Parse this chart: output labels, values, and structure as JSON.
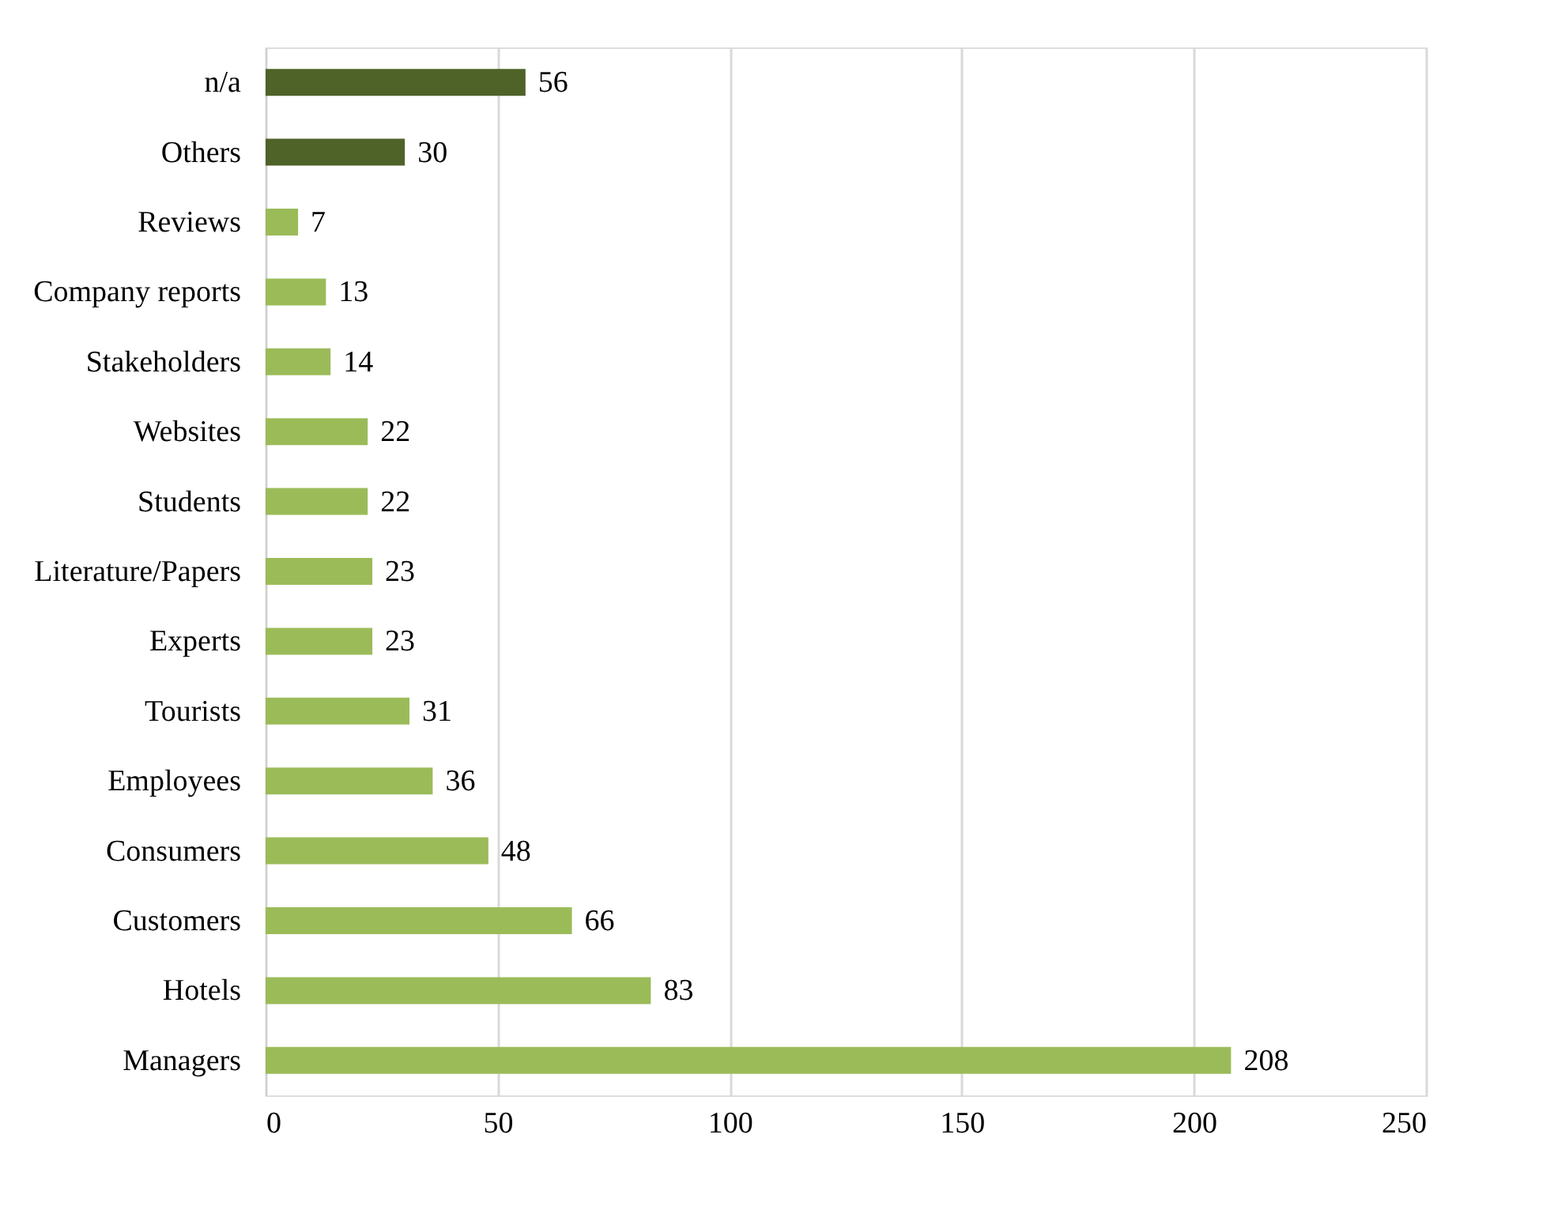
{
  "chart_data": {
    "type": "bar",
    "orientation": "horizontal",
    "categories": [
      "n/a",
      "Others",
      "Reviews",
      "Company reports",
      "Stakeholders",
      "Websites",
      "Students",
      "Literature/Papers",
      "Experts",
      "Tourists",
      "Employees",
      "Consumers",
      "Customers",
      "Hotels",
      "Managers"
    ],
    "values": [
      56,
      30,
      7,
      13,
      14,
      22,
      22,
      23,
      23,
      31,
      36,
      48,
      66,
      83,
      208
    ],
    "colors": [
      "#4f6228",
      "#4f6228",
      "#9bbb59",
      "#9bbb59",
      "#9bbb59",
      "#9bbb59",
      "#9bbb59",
      "#9bbb59",
      "#9bbb59",
      "#9bbb59",
      "#9bbb59",
      "#9bbb59",
      "#9bbb59",
      "#9bbb59",
      "#9bbb59"
    ],
    "xlim": [
      0,
      250
    ],
    "xticks": [
      0,
      50,
      100,
      150,
      200,
      250
    ],
    "grid": "x",
    "data_labels": true
  }
}
